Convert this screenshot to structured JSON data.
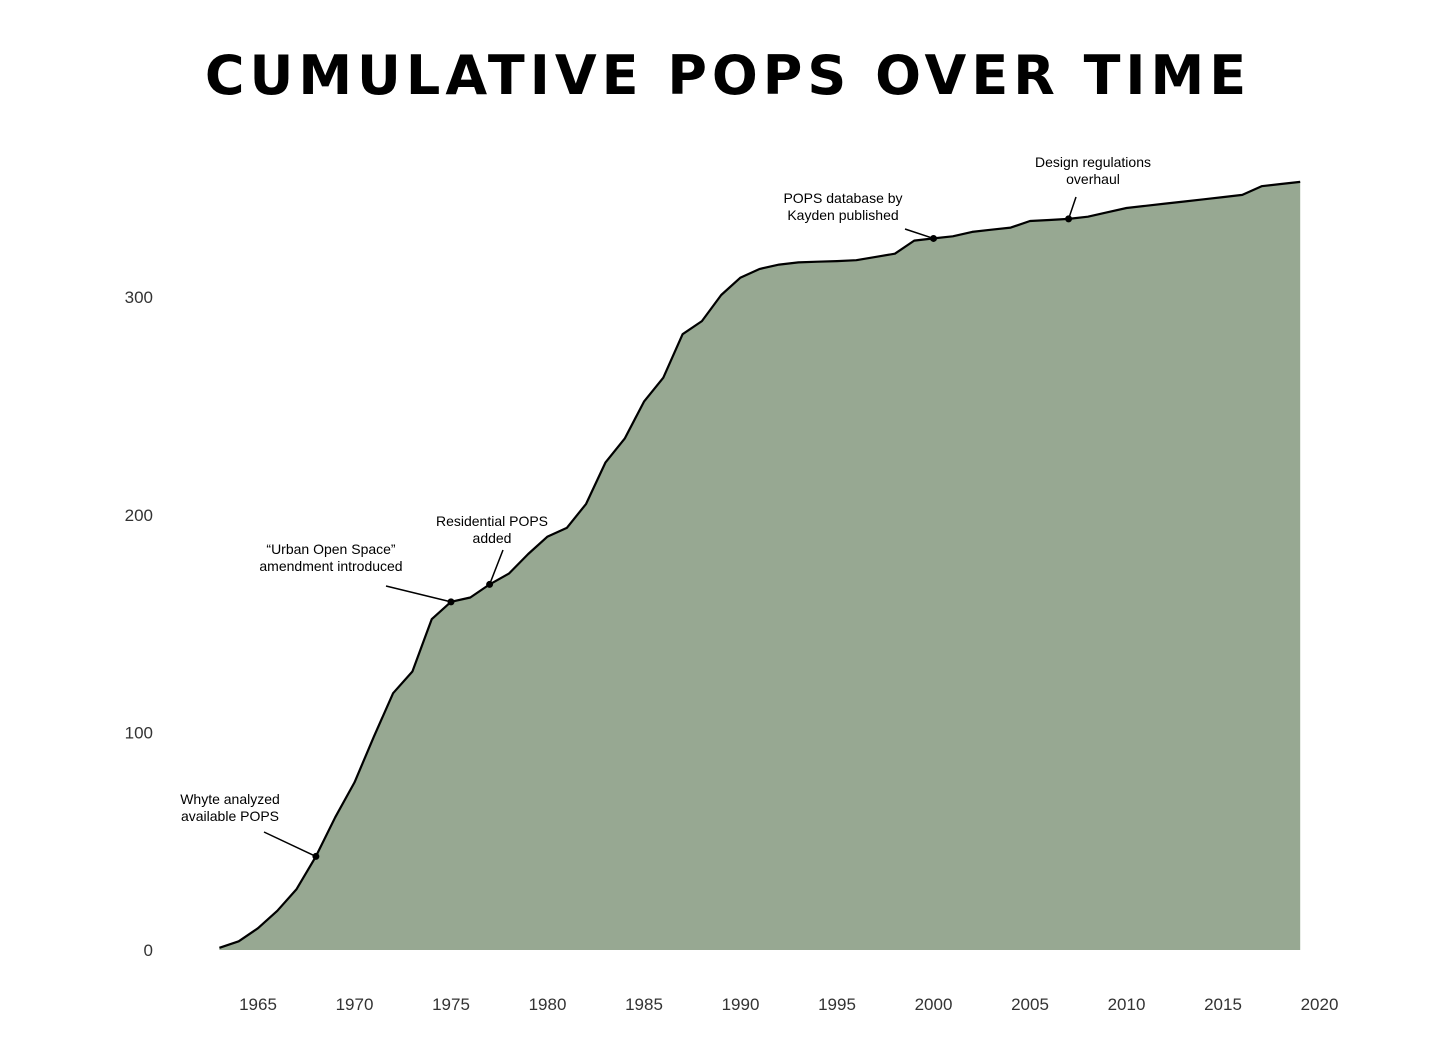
{
  "colors": {
    "area_fill": "#97a892",
    "line": "#000000",
    "background": "#ffffff"
  },
  "chart_data": {
    "type": "area",
    "title": "CUMULATIVE POPS OVER TIME",
    "xlabel": "",
    "ylabel": "",
    "xlim": [
      1961,
      2020
    ],
    "ylim": [
      0,
      355
    ],
    "grid": false,
    "legend": "none",
    "x_ticks": [
      "1965",
      "1970",
      "1975",
      "1980",
      "1985",
      "1990",
      "1995",
      "2000",
      "2005",
      "2010",
      "2015",
      "2020"
    ],
    "y_ticks": [
      "0",
      "100",
      "200",
      "300"
    ],
    "series": [
      {
        "x": [
          1963,
          1964,
          1965,
          1966,
          1967,
          1968,
          1969,
          1970,
          1971,
          1972,
          1973,
          1974,
          1975,
          1976,
          1977,
          1978,
          1979,
          1980,
          1981,
          1982,
          1983,
          1984,
          1985,
          1986,
          1987,
          1988,
          1989,
          1990,
          1991,
          1992,
          1993,
          1994,
          1995,
          1996,
          1997,
          1998,
          1999,
          2000,
          2001,
          2002,
          2003,
          2004,
          2005,
          2006,
          2007,
          2008,
          2009,
          2010,
          2011,
          2012,
          2013,
          2014,
          2015,
          2016,
          2017,
          2018,
          2019
        ],
        "y": [
          1,
          4,
          10,
          18,
          28,
          43,
          61,
          77,
          98,
          118,
          128,
          152,
          160,
          162,
          168,
          173,
          182,
          190,
          194,
          205,
          224,
          235,
          252,
          263,
          283,
          289,
          301,
          309,
          313,
          315,
          316,
          316.3,
          316.6,
          317,
          318.5,
          320,
          326,
          327,
          328,
          330,
          331,
          332,
          335,
          335.5,
          336,
          337,
          339,
          341,
          342,
          343,
          344,
          345,
          346,
          347,
          351,
          352,
          353
        ]
      }
    ],
    "annotations": [
      {
        "x": 1968,
        "y": 43,
        "text_lines": [
          "Whyte analyzed",
          "available POPS"
        ]
      },
      {
        "x": 1975,
        "y": 160,
        "text_lines": [
          "“Urban Open Space”",
          "amendment introduced"
        ]
      },
      {
        "x": 1977,
        "y": 168,
        "text_lines": [
          "Residential POPS",
          "added"
        ]
      },
      {
        "x": 2000,
        "y": 327,
        "text_lines": [
          "POPS database by",
          "Kayden published"
        ]
      },
      {
        "x": 2007,
        "y": 336,
        "text_lines": [
          "Design regulations",
          "overhaul"
        ]
      }
    ]
  }
}
